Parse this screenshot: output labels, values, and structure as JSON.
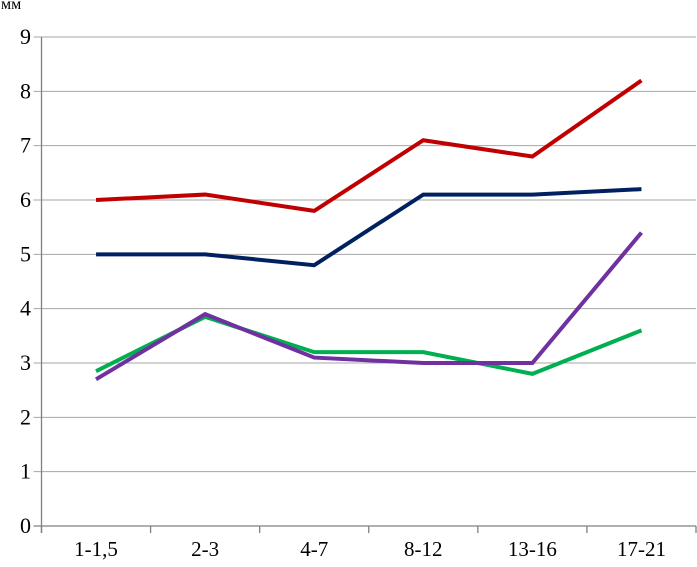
{
  "chart_data": {
    "type": "line",
    "title": "",
    "xlabel": "",
    "ylabel": "мм",
    "categories": [
      "1-1,5",
      "2-3",
      "4-7",
      "8-12",
      "13-16",
      "17-21"
    ],
    "series": [
      {
        "name": "series-1-red",
        "color": "#C00000",
        "values": [
          6.0,
          6.1,
          5.8,
          7.1,
          6.8,
          8.2
        ]
      },
      {
        "name": "series-2-navy",
        "color": "#002060",
        "values": [
          5.0,
          5.0,
          4.8,
          6.1,
          6.1,
          6.2
        ]
      },
      {
        "name": "series-3-green",
        "color": "#00B050",
        "values": [
          2.85,
          3.85,
          3.2,
          3.2,
          2.8,
          3.6
        ]
      },
      {
        "name": "series-4-purple",
        "color": "#7030A0",
        "values": [
          2.7,
          3.9,
          3.1,
          3.0,
          3.0,
          5.4
        ]
      }
    ],
    "ylim": [
      0,
      9
    ],
    "yticks": [
      0,
      1,
      2,
      3,
      4,
      5,
      6,
      7,
      8,
      9
    ],
    "grid": true,
    "legend": "none"
  },
  "style": {
    "gridline_color": "#A6A6A6",
    "axis_color": "#808080",
    "text_color": "#000000",
    "background": "#ffffff"
  }
}
